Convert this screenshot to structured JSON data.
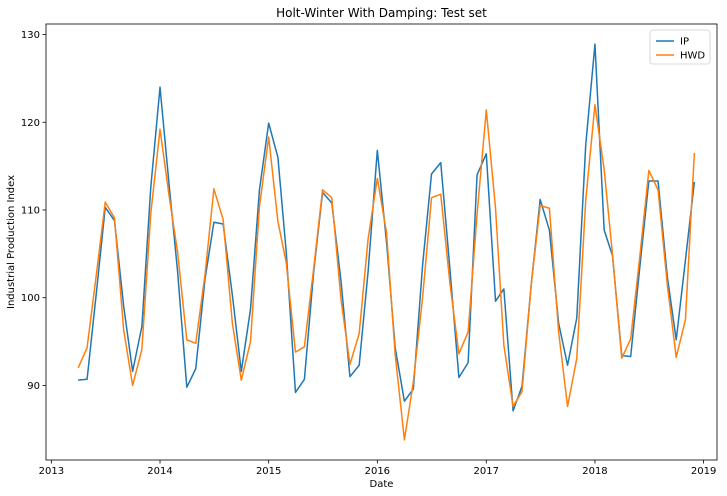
{
  "chart_data": {
    "type": "line",
    "title": "Holt-Winter With Damping: Test set",
    "xlabel": "Date",
    "ylabel": "Industrial Production Index",
    "xlim": [
      "2012-12-14",
      "2019-02-15"
    ],
    "ylim": [
      81.5,
      131.2
    ],
    "x_ticks": [
      "2013-01-01",
      "2014-01-01",
      "2015-01-01",
      "2016-01-01",
      "2017-01-01",
      "2018-01-01",
      "2019-01-01"
    ],
    "x_tick_labels": [
      "2013",
      "2014",
      "2015",
      "2016",
      "2017",
      "2018",
      "2019"
    ],
    "y_ticks": [
      90,
      100,
      110,
      120,
      130
    ],
    "y_tick_labels": [
      "90",
      "100",
      "110",
      "120",
      "130"
    ],
    "grid": false,
    "legend_position": "top-right",
    "x": [
      "2013-04-01",
      "2013-05-01",
      "2013-06-01",
      "2013-07-01",
      "2013-08-01",
      "2013-09-01",
      "2013-10-01",
      "2013-11-01",
      "2013-12-01",
      "2014-01-01",
      "2014-02-01",
      "2014-03-01",
      "2014-04-01",
      "2014-05-01",
      "2014-06-01",
      "2014-07-01",
      "2014-08-01",
      "2014-09-01",
      "2014-10-01",
      "2014-11-01",
      "2014-12-01",
      "2015-01-01",
      "2015-02-01",
      "2015-03-01",
      "2015-04-01",
      "2015-05-01",
      "2015-06-01",
      "2015-07-01",
      "2015-08-01",
      "2015-09-01",
      "2015-10-01",
      "2015-11-01",
      "2015-12-01",
      "2016-01-01",
      "2016-02-01",
      "2016-03-01",
      "2016-04-01",
      "2016-05-01",
      "2016-06-01",
      "2016-07-01",
      "2016-08-01",
      "2016-09-01",
      "2016-10-01",
      "2016-11-01",
      "2016-12-01",
      "2017-01-01",
      "2017-02-01",
      "2017-03-01",
      "2017-04-01",
      "2017-05-01",
      "2017-06-01",
      "2017-07-01",
      "2017-08-01",
      "2017-09-01",
      "2017-10-01",
      "2017-11-01",
      "2017-12-01",
      "2018-01-01",
      "2018-02-01",
      "2018-03-01",
      "2018-04-01",
      "2018-05-01",
      "2018-06-01",
      "2018-07-01",
      "2018-08-01",
      "2018-09-01",
      "2018-10-01",
      "2018-11-01",
      "2018-12-01"
    ],
    "series": [
      {
        "name": "IP",
        "color": "#1f77b4",
        "values": [
          90.6,
          90.7,
          100.5,
          110.3,
          108.8,
          99.0,
          91.6,
          96.7,
          112.6,
          124.0,
          112.7,
          103.0,
          89.8,
          91.9,
          102.1,
          108.6,
          108.4,
          100.3,
          91.6,
          98.7,
          112.3,
          119.9,
          116.0,
          105.2,
          89.2,
          90.7,
          102.9,
          112.0,
          110.8,
          101.9,
          91.0,
          92.3,
          103.0,
          116.8,
          106.3,
          94.3,
          88.2,
          89.6,
          103.7,
          114.1,
          115.4,
          103.2,
          90.9,
          92.6,
          114.0,
          116.4,
          99.6,
          101.0,
          87.1,
          89.9,
          101.5,
          111.2,
          107.7,
          97.1,
          92.3,
          97.7,
          117.4,
          128.9,
          107.7,
          104.8,
          93.4,
          93.3,
          103.6,
          113.3,
          113.3,
          102.4,
          95.2,
          104.3,
          113.2
        ]
      },
      {
        "name": "HWD",
        "color": "#ff7f0e",
        "values": [
          92.0,
          94.3,
          102.6,
          110.9,
          109.1,
          96.3,
          90.0,
          94.1,
          109.6,
          119.2,
          111.5,
          105.2,
          95.2,
          94.8,
          102.6,
          112.4,
          108.9,
          97.1,
          90.6,
          95.0,
          110.4,
          118.3,
          108.7,
          104.0,
          93.8,
          94.4,
          103.3,
          112.3,
          111.4,
          99.8,
          92.4,
          95.9,
          106.7,
          113.6,
          107.4,
          93.5,
          83.8,
          90.4,
          100.0,
          111.4,
          111.8,
          101.6,
          93.6,
          96.1,
          109.5,
          121.4,
          110.2,
          94.6,
          87.6,
          89.3,
          101.5,
          110.5,
          110.2,
          96.1,
          87.6,
          93.1,
          111.1,
          122.0,
          114.6,
          104.9,
          93.1,
          95.3,
          104.8,
          114.5,
          112.3,
          101.5,
          93.2,
          97.5,
          116.5
        ]
      }
    ]
  }
}
